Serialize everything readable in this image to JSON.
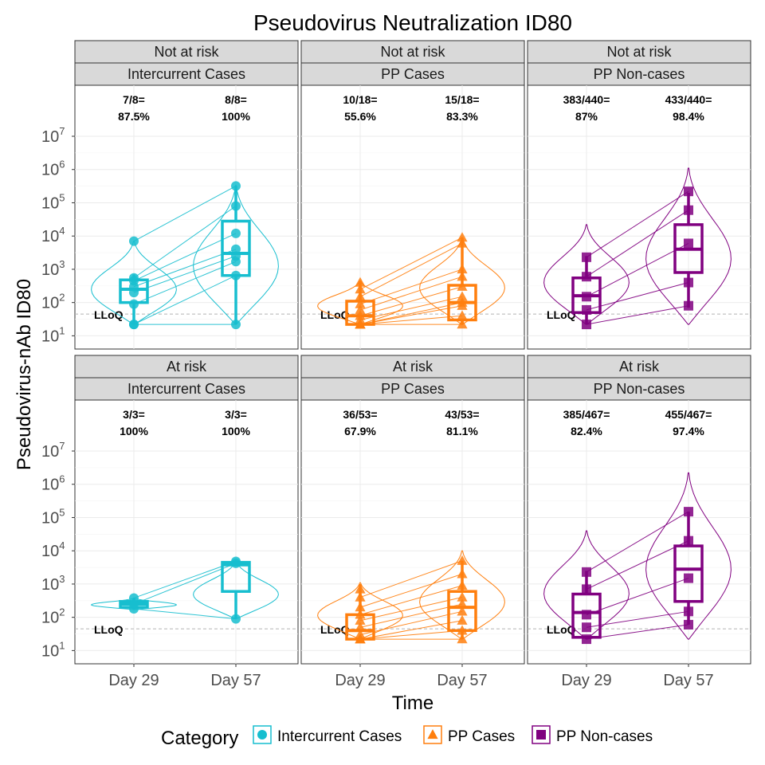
{
  "chart_data": {
    "type": "violin-box",
    "title": "Pseudovirus Neutralization ID80",
    "xlabel": "Time",
    "ylabel": "Pseudovirus-nAb ID80",
    "y_scale": "log10",
    "ylim": [
      4,
      10000000
    ],
    "y_ticks": [
      {
        "base": "10",
        "exp": "1",
        "value": 10
      },
      {
        "base": "10",
        "exp": "2",
        "value": 100
      },
      {
        "base": "10",
        "exp": "3",
        "value": 1000
      },
      {
        "base": "10",
        "exp": "4",
        "value": 10000
      },
      {
        "base": "10",
        "exp": "5",
        "value": 100000
      },
      {
        "base": "10",
        "exp": "6",
        "value": 1000000
      },
      {
        "base": "10",
        "exp": "7",
        "value": 10000000
      }
    ],
    "categories": [
      "Day 29",
      "Day 57"
    ],
    "lloq_label": "LLoQ",
    "lloq_value": 45,
    "legend": {
      "title": "Category",
      "placement": "bottom",
      "items": [
        {
          "label": "Intercurrent Cases",
          "color": "#17becf",
          "shape": "circle"
        },
        {
          "label": "PP Cases",
          "color": "#ff7f0e",
          "shape": "triangle"
        },
        {
          "label": "PP Non-cases",
          "color": "#800080",
          "shape": "square"
        }
      ]
    },
    "panels": [
      {
        "row_label": "Not at risk",
        "col_label": "Intercurrent Cases",
        "color": "#17becf",
        "shape": "circle",
        "annotations": [
          [
            "7/8=",
            "87.5%"
          ],
          [
            "8/8=",
            "100%"
          ]
        ],
        "box": [
          [
            100,
            250,
            480
          ],
          [
            650,
            3000,
            28000
          ]
        ],
        "whisker": [
          [
            22,
            700
          ],
          [
            22,
            320000
          ]
        ],
        "violin_range": [
          [
            22,
            7000
          ],
          [
            22,
            330000
          ]
        ],
        "points": [
          [
            22,
            22,
            90,
            200,
            300,
            450,
            550,
            7000
          ],
          [
            22,
            650,
            1700,
            2500,
            4000,
            12000,
            80000,
            320000
          ]
        ]
      },
      {
        "row_label": "Not at risk",
        "col_label": "PP Cases",
        "color": "#ff7f0e",
        "shape": "triangle",
        "annotations": [
          [
            "10/18=",
            "55.6%"
          ],
          [
            "15/18=",
            "83.3%"
          ]
        ],
        "box": [
          [
            22,
            40,
            110
          ],
          [
            30,
            100,
            330
          ]
        ],
        "whisker": [
          [
            22,
            450
          ],
          [
            22,
            9000
          ]
        ],
        "violin_range": [
          [
            22,
            450
          ],
          [
            22,
            9000
          ]
        ],
        "points": [
          [
            22,
            22,
            22,
            22,
            30,
            40,
            60,
            90,
            150,
            250,
            400
          ],
          [
            22,
            40,
            80,
            100,
            150,
            300,
            600,
            1000,
            6000,
            9000
          ]
        ]
      },
      {
        "row_label": "Not at risk",
        "col_label": "PP Non-cases",
        "color": "#800080",
        "shape": "square",
        "annotations": [
          [
            "383/440=",
            "87%"
          ],
          [
            "433/440=",
            "98.4%"
          ]
        ],
        "box": [
          [
            50,
            160,
            550
          ],
          [
            800,
            4000,
            22000
          ]
        ],
        "whisker": [
          [
            22,
            2500
          ],
          [
            70,
            200000
          ]
        ],
        "violin_range": [
          [
            22,
            22000
          ],
          [
            22,
            1100000
          ]
        ],
        "points": [
          [
            22,
            60,
            150,
            600,
            2300
          ],
          [
            80,
            400,
            6000,
            60000,
            220000
          ]
        ]
      },
      {
        "row_label": "At risk",
        "col_label": "Intercurrent Cases",
        "color": "#17becf",
        "shape": "circle",
        "annotations": [
          [
            "3/3=",
            "100%"
          ],
          [
            "3/3=",
            "100%"
          ]
        ],
        "box": [
          [
            200,
            250,
            300
          ],
          [
            600,
            3800,
            4500
          ]
        ],
        "whisker": [
          [
            170,
            380
          ],
          [
            90,
            5000
          ]
        ],
        "violin_range": [
          [
            170,
            380
          ],
          [
            90,
            5000
          ]
        ],
        "points": [
          [
            180,
            250,
            380
          ],
          [
            90,
            4200,
            4800
          ]
        ]
      },
      {
        "row_label": "At risk",
        "col_label": "PP Cases",
        "color": "#ff7f0e",
        "shape": "triangle",
        "annotations": [
          [
            "36/53=",
            "67.9%"
          ],
          [
            "43/53=",
            "81.1%"
          ]
        ],
        "box": [
          [
            22,
            40,
            120
          ],
          [
            40,
            200,
            600
          ]
        ],
        "whisker": [
          [
            22,
            1000
          ],
          [
            22,
            5000
          ]
        ],
        "violin_range": [
          [
            22,
            1100
          ],
          [
            22,
            10000
          ]
        ],
        "points": [
          [
            22,
            22,
            22,
            30,
            50,
            80,
            120,
            200,
            400,
            700
          ],
          [
            22,
            40,
            80,
            150,
            250,
            400,
            900,
            2000,
            5000
          ]
        ]
      },
      {
        "row_label": "At risk",
        "col_label": "PP Non-cases",
        "color": "#800080",
        "shape": "square",
        "annotations": [
          [
            "385/467=",
            "82.4%"
          ],
          [
            "455/467=",
            "97.4%"
          ]
        ],
        "box": [
          [
            25,
            140,
            500
          ],
          [
            300,
            2800,
            14000
          ]
        ],
        "whisker": [
          [
            22,
            2500
          ],
          [
            60,
            150000
          ]
        ],
        "violin_range": [
          [
            22,
            40000
          ],
          [
            22,
            2200000
          ]
        ],
        "points": [
          [
            22,
            50,
            120,
            700,
            2300
          ],
          [
            60,
            150,
            1500,
            20000,
            150000
          ]
        ]
      }
    ]
  }
}
